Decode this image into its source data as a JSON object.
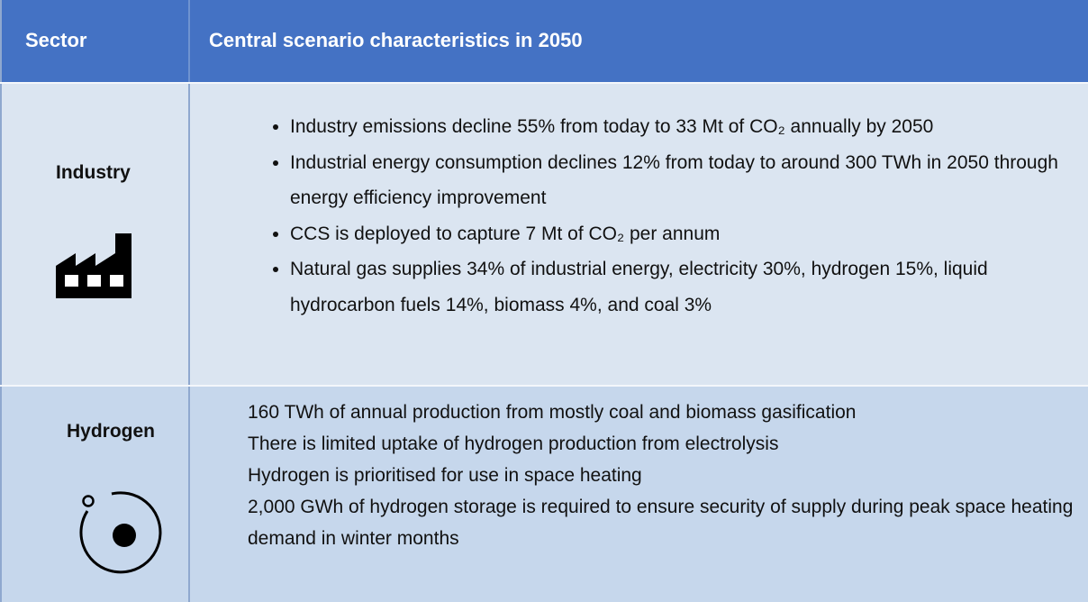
{
  "table": {
    "header": [
      "Sector",
      "Central scenario characteristics in 2050"
    ],
    "rows": [
      {
        "sector": "Industry",
        "items": [
          "Industry emissions decline 55% from today to 33 Mt of CO₂ annually by 2050",
          "Industrial energy consumption declines 12% from today to around 300 TWh in 2050 through energy efficiency improvement",
          "CCS is deployed to capture 7 Mt of CO₂ per annum",
          "Natural gas supplies 34% of industrial energy, electricity 30%, hydrogen 15%, liquid hydrocarbon fuels 14%, biomass 4%, and coal 3%"
        ]
      },
      {
        "sector": "Hydrogen",
        "items": [
          "160 TWh of annual production from mostly coal and biomass gasification",
          "There is limited uptake of hydrogen production from electrolysis",
          "Hydrogen is prioritised for use in space heating",
          "2,000 GWh of hydrogen storage is required to ensure security of supply during peak space heating demand in winter months"
        ]
      }
    ]
  }
}
